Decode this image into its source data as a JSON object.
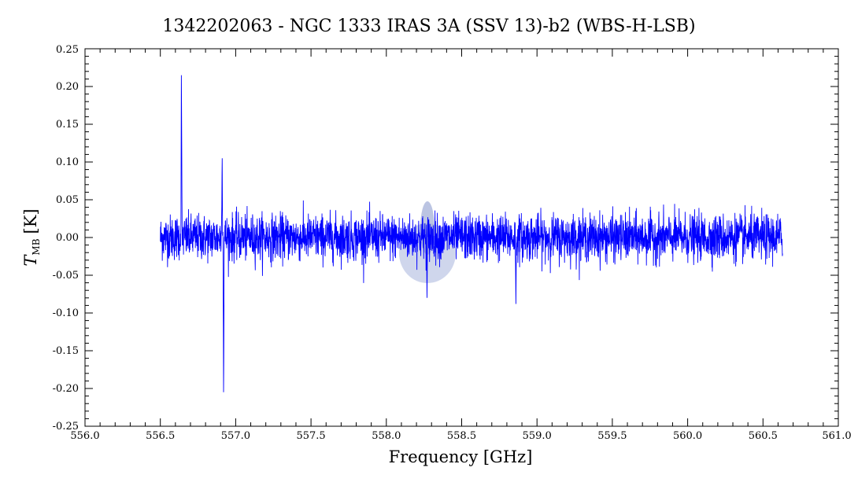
{
  "chart_data": {
    "type": "line",
    "title": "1342202063 - NGC 1333 IRAS 3A (SSV 13)-b2 (WBS-H-LSB)",
    "xlabel": "Frequency [GHz]",
    "ylabel_main": "T",
    "ylabel_sub": "MB",
    "ylabel_unit": "[K]",
    "xlim": [
      556.0,
      561.0
    ],
    "ylim": [
      -0.25,
      0.25
    ],
    "x_ticks": [
      "556.0",
      "556.5",
      "557.0",
      "557.5",
      "558.0",
      "558.5",
      "559.0",
      "559.5",
      "560.0",
      "560.5",
      "561.0"
    ],
    "y_ticks": [
      "-0.25",
      "-0.20",
      "-0.15",
      "-0.10",
      "-0.05",
      "0.00",
      "0.05",
      "0.10",
      "0.15",
      "0.20",
      "0.25"
    ],
    "grid": false,
    "line_color": "#0000ff",
    "series": [
      {
        "x_start": 556.5,
        "x_end": 560.63,
        "noise_rms": 0.015,
        "features": [
          {
            "x": 556.64,
            "y": 0.215
          },
          {
            "x": 556.91,
            "y": 0.105
          },
          {
            "x": 556.92,
            "y": -0.205
          },
          {
            "x": 558.27,
            "y": -0.08
          },
          {
            "x": 558.86,
            "y": -0.088
          }
        ]
      }
    ]
  }
}
